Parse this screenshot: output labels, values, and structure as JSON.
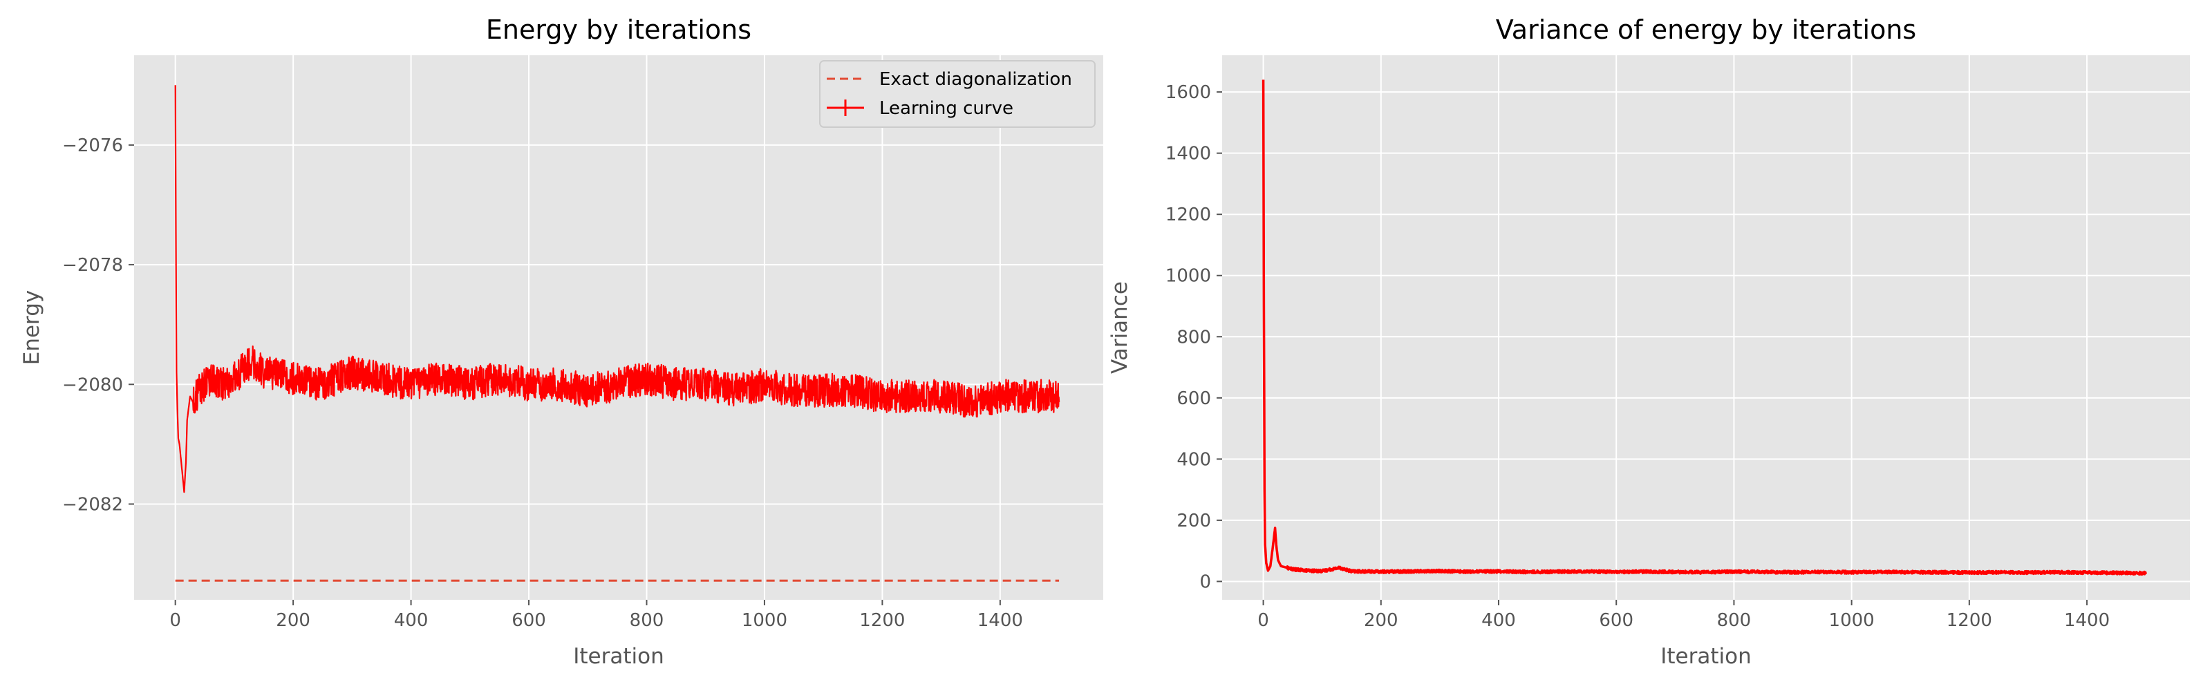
{
  "chart_data": [
    {
      "type": "line",
      "title": "Energy by iterations",
      "xlabel": "Iteration",
      "ylabel": "Energy",
      "xlim": [
        -70,
        1575
      ],
      "ylim": [
        -2083.6,
        -2074.5
      ],
      "xticks": [
        0,
        200,
        400,
        600,
        800,
        1000,
        1200,
        1400
      ],
      "yticks": [
        -2082,
        -2080,
        -2078,
        -2076
      ],
      "ytick_labels": [
        "−2082",
        "−2080",
        "−2078",
        "−2076"
      ],
      "grid": true,
      "legend": "top-right",
      "series": [
        {
          "name": "Exact diagonalization",
          "style": "dashed",
          "color": "#e24a33",
          "x": [
            0,
            1500
          ],
          "y": [
            -2083.28,
            -2083.28
          ]
        },
        {
          "name": "Learning curve",
          "style": "solid",
          "color": "#ff0000",
          "x": [
            0,
            1,
            2,
            3,
            4,
            5,
            7,
            10,
            12,
            15,
            18,
            20,
            25,
            30,
            40,
            50,
            60,
            80,
            100,
            130,
            150,
            200,
            250,
            300,
            350,
            400,
            450,
            500,
            550,
            600,
            650,
            700,
            750,
            800,
            850,
            900,
            950,
            1000,
            1050,
            1100,
            1150,
            1200,
            1250,
            1300,
            1350,
            1400,
            1450,
            1500
          ],
          "y": [
            -2075.0,
            -2077.5,
            -2079.8,
            -2080.2,
            -2080.6,
            -2080.9,
            -2081.0,
            -2081.3,
            -2081.5,
            -2081.8,
            -2081.3,
            -2080.6,
            -2080.2,
            -2080.3,
            -2080.1,
            -2080.0,
            -2079.9,
            -2080.0,
            -2079.9,
            -2079.6,
            -2079.8,
            -2079.9,
            -2080.0,
            -2079.8,
            -2079.9,
            -2080.0,
            -2079.9,
            -2080.0,
            -2079.9,
            -2080.0,
            -2080.0,
            -2080.1,
            -2080.0,
            -2079.9,
            -2080.0,
            -2080.0,
            -2080.1,
            -2080.0,
            -2080.1,
            -2080.1,
            -2080.1,
            -2080.2,
            -2080.2,
            -2080.2,
            -2080.3,
            -2080.2,
            -2080.2,
            -2080.2
          ]
        }
      ]
    },
    {
      "type": "line",
      "title": "Variance of energy by iterations",
      "xlabel": "Iteration",
      "ylabel": "Variance",
      "xlim": [
        -70,
        1575
      ],
      "ylim": [
        -60,
        1720
      ],
      "xticks": [
        0,
        200,
        400,
        600,
        800,
        1000,
        1200,
        1400
      ],
      "yticks": [
        0,
        200,
        400,
        600,
        800,
        1000,
        1200,
        1400,
        1600
      ],
      "grid": true,
      "series": [
        {
          "color": "#ff0000",
          "x": [
            0,
            1,
            2,
            3,
            5,
            8,
            12,
            16,
            20,
            22,
            25,
            30,
            40,
            50,
            60,
            80,
            100,
            130,
            150,
            200,
            250,
            300,
            350,
            400,
            450,
            500,
            550,
            600,
            650,
            700,
            750,
            800,
            850,
            900,
            950,
            1000,
            1050,
            1100,
            1150,
            1200,
            1250,
            1300,
            1350,
            1400,
            1450,
            1500
          ],
          "y": [
            1640,
            900,
            300,
            120,
            60,
            35,
            50,
            110,
            175,
            120,
            70,
            50,
            45,
            40,
            38,
            35,
            34,
            45,
            33,
            32,
            33,
            34,
            32,
            33,
            31,
            32,
            33,
            31,
            32,
            31,
            30,
            32,
            31,
            30,
            31,
            30,
            31,
            30,
            30,
            29,
            30,
            29,
            30,
            29,
            28,
            27
          ]
        }
      ]
    }
  ]
}
